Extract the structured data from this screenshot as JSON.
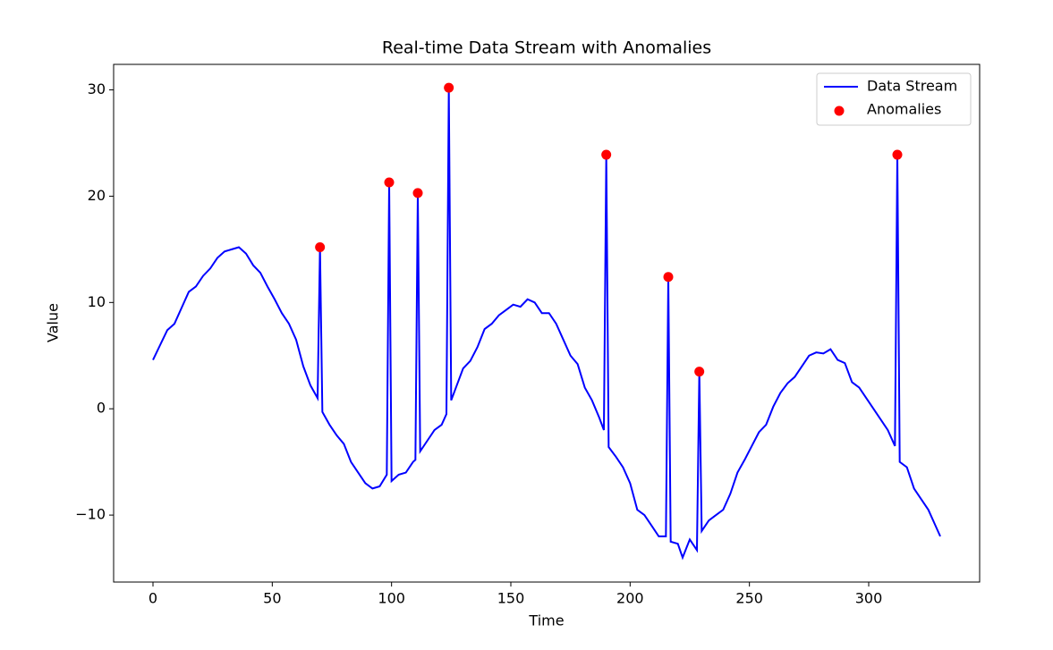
{
  "chart_data": {
    "type": "line",
    "title": "Real-time Data Stream with Anomalies",
    "x_label": "Time",
    "y_label": "Value",
    "xlim": [
      -16.5,
      346.5
    ],
    "ylim": [
      -16.3,
      32.4
    ],
    "xticks": [
      0,
      50,
      100,
      150,
      200,
      250,
      300
    ],
    "yticks": [
      {
        "value": -10,
        "label": "−10"
      },
      0,
      10,
      20,
      30
    ],
    "legend": "upper right",
    "series": [
      {
        "name": "Data Stream",
        "type": "line",
        "color": "#0000ff",
        "x": [
          0,
          3,
          6,
          9,
          12,
          15,
          18,
          21,
          24,
          27,
          30,
          33,
          36,
          39,
          42,
          45,
          48,
          51,
          54,
          57,
          60,
          63,
          66,
          69,
          70,
          71,
          74,
          77,
          80,
          83,
          86,
          89,
          92,
          95,
          98,
          99,
          100,
          103,
          106,
          109,
          110,
          111,
          112,
          115,
          118,
          121,
          123,
          124,
          125,
          127,
          130,
          133,
          136,
          139,
          142,
          145,
          148,
          151,
          154,
          157,
          160,
          163,
          166,
          169,
          172,
          175,
          178,
          181,
          184,
          187,
          189,
          190,
          191,
          194,
          197,
          200,
          203,
          206,
          209,
          212,
          215,
          216,
          217,
          220,
          222,
          225,
          228,
          229,
          230,
          233,
          236,
          239,
          242,
          245,
          248,
          251,
          254,
          257,
          260,
          263,
          266,
          269,
          272,
          275,
          278,
          281,
          284,
          287,
          290,
          293,
          296,
          299,
          302,
          305,
          308,
          311,
          312,
          313,
          316,
          319,
          322,
          325,
          328,
          330
        ],
        "values": [
          4.6,
          6.0,
          7.4,
          8.0,
          9.5,
          11.0,
          11.5,
          12.5,
          13.2,
          14.2,
          14.8,
          15.0,
          15.2,
          14.6,
          13.5,
          12.8,
          11.5,
          10.3,
          9.0,
          8.0,
          6.5,
          4.0,
          2.2,
          1.0,
          15.2,
          -0.3,
          -1.5,
          -2.5,
          -3.3,
          -5.0,
          -6.0,
          -7.0,
          -7.5,
          -7.3,
          -6.2,
          21.3,
          -6.8,
          -6.2,
          -6.0,
          -5.0,
          -4.8,
          20.3,
          -4.0,
          -3.0,
          -2.0,
          -1.5,
          -0.5,
          30.2,
          0.8,
          2.0,
          3.8,
          4.5,
          5.8,
          7.5,
          8.0,
          8.8,
          9.3,
          9.8,
          9.6,
          10.3,
          10.0,
          9.0,
          9.0,
          8.0,
          6.5,
          5.0,
          4.2,
          2.0,
          0.8,
          -0.8,
          -2.0,
          23.9,
          -3.6,
          -4.5,
          -5.5,
          -7.0,
          -9.5,
          -10.0,
          -11.0,
          -12.0,
          -12.0,
          12.4,
          -12.5,
          -12.7,
          -14.0,
          -12.3,
          -13.3,
          3.5,
          -11.5,
          -10.5,
          -10.0,
          -9.5,
          -8.0,
          -6.0,
          -4.8,
          -3.5,
          -2.2,
          -1.5,
          0.2,
          1.5,
          2.4,
          3.0,
          4.0,
          5.0,
          5.3,
          5.2,
          5.6,
          4.6,
          4.3,
          2.5,
          2.0,
          1.0,
          0.0,
          -1.0,
          -2.0,
          -3.5,
          23.9,
          -5.0,
          -5.5,
          -7.5,
          -8.5,
          -9.5,
          -11.0,
          -12.0
        ]
      },
      {
        "name": "Anomalies",
        "type": "scatter",
        "color": "#ff0000",
        "x": [
          70,
          99,
          111,
          124,
          190,
          216,
          229,
          312
        ],
        "values": [
          15.2,
          21.3,
          20.3,
          30.2,
          23.9,
          12.4,
          3.5,
          23.9
        ]
      }
    ]
  }
}
